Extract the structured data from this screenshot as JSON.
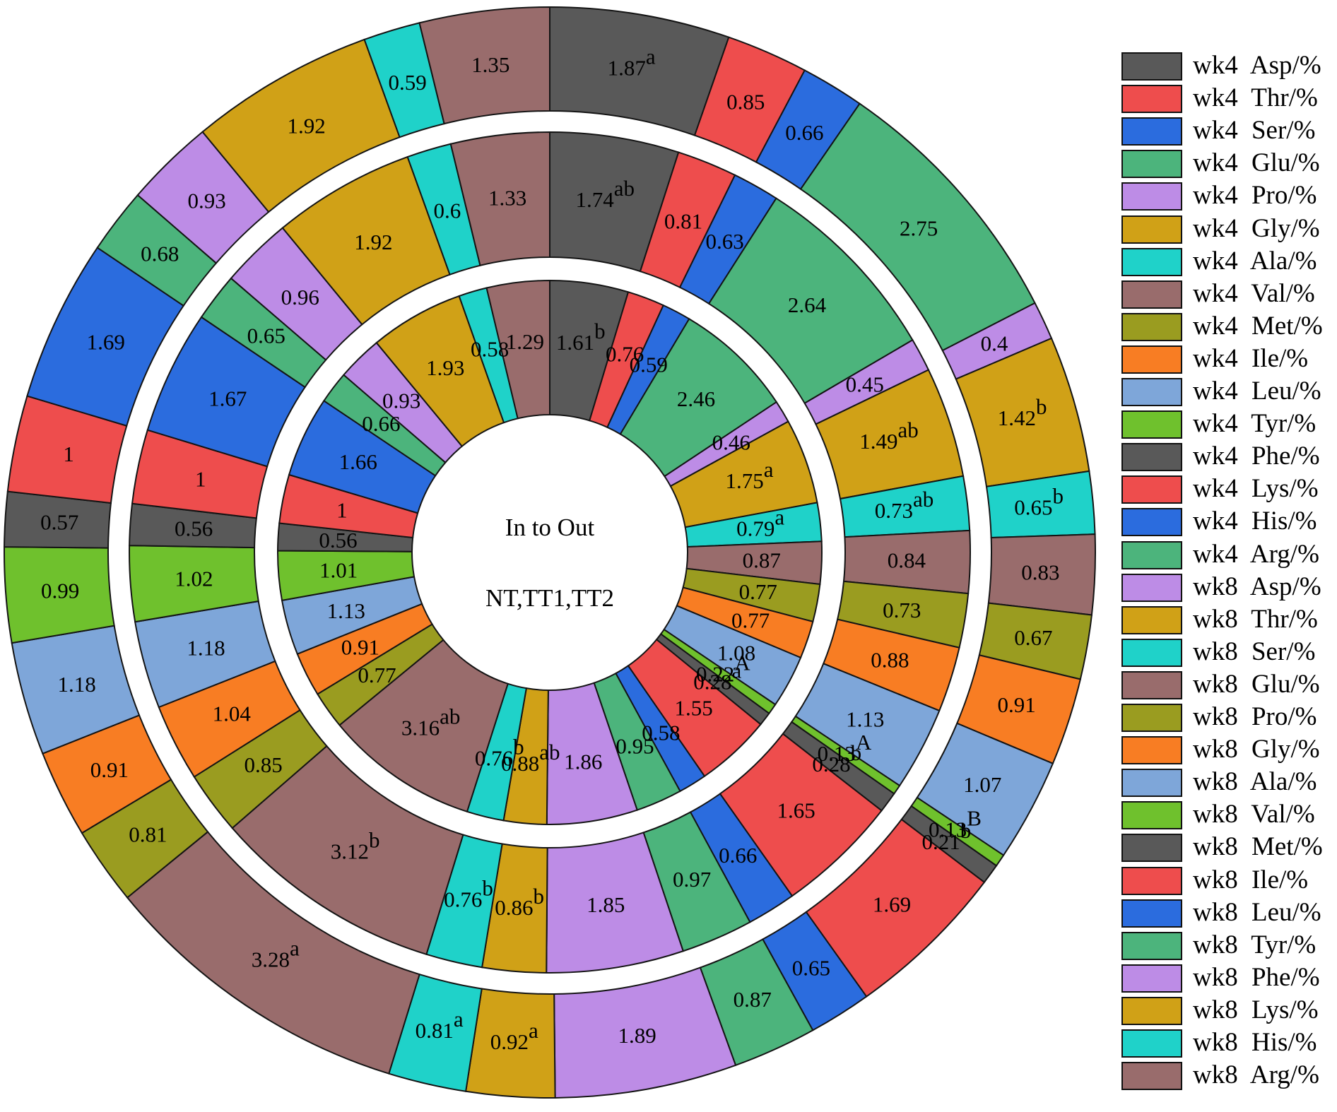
{
  "center": {
    "line1": "In to Out",
    "line2": "NT,TT1,TT2"
  },
  "chart_data": {
    "type": "pie",
    "variant": "three concentric donut rings (circos-style), segments clockwise from 12 o'clock",
    "rings_in_to_out": [
      "NT",
      "TT1",
      "TT2"
    ],
    "legend_position": "right",
    "series": [
      {
        "label": "wk4 Asp/%",
        "color": "#595959",
        "values": {
          "NT": "1.61",
          "TT1": "1.74",
          "TT2": "1.87"
        },
        "sig": {
          "NT": "b",
          "TT1": "ab",
          "TT2": "a"
        }
      },
      {
        "label": "wk4 Thr/%",
        "color": "#EE4D4D",
        "values": {
          "NT": "0.76",
          "TT1": "0.81",
          "TT2": "0.85"
        },
        "sig": {}
      },
      {
        "label": "wk4 Ser/%",
        "color": "#2B6CDE",
        "values": {
          "NT": "0.59",
          "TT1": "0.63",
          "TT2": "0.66"
        },
        "sig": {}
      },
      {
        "label": "wk4 Glu/%",
        "color": "#4CB47C",
        "values": {
          "NT": "2.46",
          "TT1": "2.64",
          "TT2": "2.75"
        },
        "sig": {}
      },
      {
        "label": "wk4 Pro/%",
        "color": "#BD8CE6",
        "values": {
          "NT": "0.46",
          "TT1": "0.45",
          "TT2": "0.4"
        },
        "sig": {}
      },
      {
        "label": "wk4 Gly/%",
        "color": "#D0A117",
        "values": {
          "NT": "1.75",
          "TT1": "1.49",
          "TT2": "1.42"
        },
        "sig": {
          "NT": "a",
          "TT1": "ab",
          "TT2": "b"
        }
      },
      {
        "label": "wk4 Ala/%",
        "color": "#1FD2C9",
        "values": {
          "NT": "0.79",
          "TT1": "0.73",
          "TT2": "0.65"
        },
        "sig": {
          "NT": "a",
          "TT1": "ab",
          "TT2": "b"
        }
      },
      {
        "label": "wk4 Val/%",
        "color": "#996C6C",
        "values": {
          "NT": "0.87",
          "TT1": "0.84",
          "TT2": "0.83"
        },
        "sig": {}
      },
      {
        "label": "wk4 Met/%",
        "color": "#9A9C20",
        "values": {
          "NT": "0.77",
          "TT1": "0.73",
          "TT2": "0.67"
        },
        "sig": {}
      },
      {
        "label": "wk4 Ile/%",
        "color": "#F87D23",
        "values": {
          "NT": "0.77",
          "TT1": "0.88",
          "TT2": "0.91"
        },
        "sig": {}
      },
      {
        "label": "wk4 Leu/%",
        "color": "#7EA6D9",
        "values": {
          "NT": "1.08",
          "TT1": "1.13",
          "TT2": "1.07"
        },
        "sig": {}
      },
      {
        "label": "wk4 Tyr/%",
        "color": "#6FC12D",
        "values": {
          "NT": "0.22",
          "TT1": "0.13",
          "TT2": "0.13"
        },
        "sig": {
          "NT": "A",
          "TT1": "A",
          "TT2": "B"
        }
      },
      {
        "label": "wk4 Phe/%",
        "color": "#595959",
        "values": {
          "NT": "0.28",
          "TT1": "0.28",
          "TT2": "0.21"
        },
        "sig": {
          "NT": "a",
          "TT1": "b",
          "TT2": "b"
        }
      },
      {
        "label": "wk4 Lys/%",
        "color": "#EE4D4D",
        "values": {
          "NT": "1.55",
          "TT1": "1.65",
          "TT2": "1.69"
        },
        "sig": {}
      },
      {
        "label": "wk4 His/%",
        "color": "#2B6CDE",
        "values": {
          "NT": "0.58",
          "TT1": "0.66",
          "TT2": "0.65"
        },
        "sig": {}
      },
      {
        "label": "wk4 Arg/%",
        "color": "#4CB47C",
        "values": {
          "NT": "0.95",
          "TT1": "0.97",
          "TT2": "0.87"
        },
        "sig": {}
      },
      {
        "label": "wk8 Asp/%",
        "color": "#BD8CE6",
        "values": {
          "NT": "1.86",
          "TT1": "1.85",
          "TT2": "1.89"
        },
        "sig": {}
      },
      {
        "label": "wk8 Thr/%",
        "color": "#D0A117",
        "values": {
          "NT": "0.88",
          "TT1": "0.86",
          "TT2": "0.92"
        },
        "sig": {
          "NT": "ab",
          "TT1": "b",
          "TT2": "a"
        }
      },
      {
        "label": "wk8 Ser/%",
        "color": "#1FD2C9",
        "values": {
          "NT": "0.76",
          "TT1": "0.76",
          "TT2": "0.81"
        },
        "sig": {
          "NT": "b",
          "TT1": "b",
          "TT2": "a"
        }
      },
      {
        "label": "wk8 Glu/%",
        "color": "#996C6C",
        "values": {
          "NT": "3.16",
          "TT1": "3.12",
          "TT2": "3.28"
        },
        "sig": {
          "NT": "ab",
          "TT1": "b",
          "TT2": "a"
        }
      },
      {
        "label": "wk8 Pro/%",
        "color": "#9A9C20",
        "values": {
          "NT": "0.77",
          "TT1": "0.85",
          "TT2": "0.81"
        },
        "sig": {}
      },
      {
        "label": "wk8 Gly/%",
        "color": "#F87D23",
        "values": {
          "NT": "0.91",
          "TT1": "1.04",
          "TT2": "0.91"
        },
        "sig": {}
      },
      {
        "label": "wk8 Ala/%",
        "color": "#7EA6D9",
        "values": {
          "NT": "1.13",
          "TT1": "1.18",
          "TT2": "1.18"
        },
        "sig": {}
      },
      {
        "label": "wk8 Val/%",
        "color": "#6FC12D",
        "values": {
          "NT": "1.01",
          "TT1": "1.02",
          "TT2": "0.99"
        },
        "sig": {}
      },
      {
        "label": "wk8 Met/%",
        "color": "#595959",
        "values": {
          "NT": "0.56",
          "TT1": "0.56",
          "TT2": "0.57"
        },
        "sig": {}
      },
      {
        "label": "wk8 Ile/%",
        "color": "#EE4D4D",
        "values": {
          "NT": "1",
          "TT1": "1",
          "TT2": "1"
        },
        "sig": {}
      },
      {
        "label": "wk8 Leu/%",
        "color": "#2B6CDE",
        "values": {
          "NT": "1.66",
          "TT1": "1.67",
          "TT2": "1.69"
        },
        "sig": {}
      },
      {
        "label": "wk8 Tyr/%",
        "color": "#4CB47C",
        "values": {
          "NT": "0.66",
          "TT1": "0.65",
          "TT2": "0.68"
        },
        "sig": {}
      },
      {
        "label": "wk8 Phe/%",
        "color": "#BD8CE6",
        "values": {
          "NT": "0.93",
          "TT1": "0.96",
          "TT2": "0.93"
        },
        "sig": {}
      },
      {
        "label": "wk8 Lys/%",
        "color": "#D0A117",
        "values": {
          "NT": "1.93",
          "TT1": "1.92",
          "TT2": "1.92"
        },
        "sig": {}
      },
      {
        "label": "wk8 His/%",
        "color": "#1FD2C9",
        "values": {
          "NT": "0.58",
          "TT1": "0.6",
          "TT2": "0.59"
        },
        "sig": {}
      },
      {
        "label": "wk8 Arg/%",
        "color": "#996C6C",
        "values": {
          "NT": "1.29",
          "TT1": "1.33",
          "TT2": "1.35"
        },
        "sig": {}
      }
    ]
  },
  "legend": {
    "items": [
      "wk4 Asp/%",
      "wk4 Thr/%",
      "wk4 Ser/%",
      "wk4 Glu/%",
      "wk4 Pro/%",
      "wk4 Gly/%",
      "wk4 Ala/%",
      "wk4 Val/%",
      "wk4 Met/%",
      "wk4 Ile/%",
      "wk4 Leu/%",
      "wk4 Tyr/%",
      "wk4 Phe/%",
      "wk4 Lys/%",
      "wk4 His/%",
      "wk4 Arg/%",
      "wk8 Asp/%",
      "wk8 Thr/%",
      "wk8 Ser/%",
      "wk8 Glu/%",
      "wk8 Pro/%",
      "wk8 Gly/%",
      "wk8 Ala/%",
      "wk8 Val/%",
      "wk8 Met/%",
      "wk8 Ile/%",
      "wk8 Leu/%",
      "wk8 Tyr/%",
      "wk8 Phe/%",
      "wk8 Lys/%",
      "wk8 His/%",
      "wk8 Arg/%"
    ]
  }
}
